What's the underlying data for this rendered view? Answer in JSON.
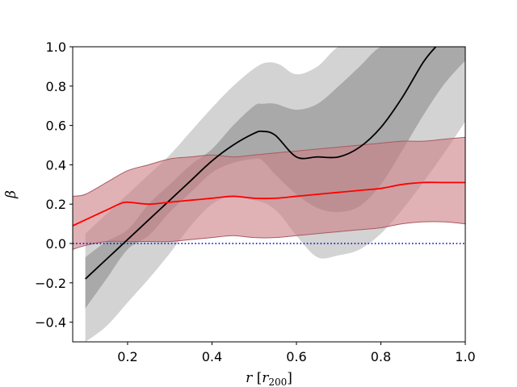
{
  "chart_data": {
    "type": "line",
    "title": "",
    "xlabel": "r [r200]",
    "ylabel": "β",
    "xlim": [
      0.07,
      1.0
    ],
    "ylim": [
      -0.5,
      1.0
    ],
    "xticks": [
      0.2,
      0.4,
      0.6,
      0.8,
      1.0
    ],
    "xtick_labels": [
      "0.2",
      "0.4",
      "0.6",
      "0.8",
      "1.0"
    ],
    "yticks": [
      -0.4,
      -0.2,
      0.0,
      0.2,
      0.4,
      0.6,
      0.8,
      1.0
    ],
    "ytick_labels": [
      "−0.4",
      "−0.2",
      "0.0",
      "0.2",
      "0.4",
      "0.6",
      "0.8",
      "1.0"
    ],
    "grid": false,
    "colors": {
      "black_line": "#000000",
      "outer_band": "#d3d3d3",
      "inner_band": "#a9a9a9",
      "red_line": "#ff0000",
      "red_band": "#cd7e84",
      "red_band_edge": "#a85a60",
      "reference_line": "#0000cd"
    },
    "series": [
      {
        "name": "black median",
        "style": "solid",
        "color": "#000000",
        "x": [
          0.1,
          0.15,
          0.2,
          0.25,
          0.3,
          0.35,
          0.4,
          0.45,
          0.5,
          0.52,
          0.55,
          0.6,
          0.65,
          0.7,
          0.75,
          0.8,
          0.85,
          0.9,
          0.93
        ],
        "y": [
          -0.18,
          -0.08,
          0.02,
          0.12,
          0.22,
          0.32,
          0.42,
          0.5,
          0.56,
          0.57,
          0.55,
          0.44,
          0.44,
          0.44,
          0.49,
          0.59,
          0.74,
          0.92,
          1.0
        ]
      },
      {
        "name": "black inner band",
        "type": "band",
        "color": "#a9a9a9",
        "x": [
          0.1,
          0.15,
          0.2,
          0.25,
          0.3,
          0.35,
          0.4,
          0.45,
          0.5,
          0.52,
          0.55,
          0.6,
          0.65,
          0.7,
          0.75,
          0.8,
          0.85,
          0.9,
          0.95,
          1.0
        ],
        "lower": [
          -0.33,
          -0.18,
          -0.03,
          0.04,
          0.16,
          0.26,
          0.36,
          0.41,
          0.43,
          0.42,
          0.35,
          0.25,
          0.18,
          0.16,
          0.19,
          0.3,
          0.47,
          0.65,
          0.81,
          0.93
        ],
        "upper": [
          -0.07,
          0.01,
          0.07,
          0.2,
          0.3,
          0.4,
          0.48,
          0.6,
          0.7,
          0.71,
          0.71,
          0.68,
          0.71,
          0.8,
          0.9,
          1.0,
          1.0,
          1.0,
          1.0,
          1.0
        ]
      },
      {
        "name": "black outer band",
        "type": "band",
        "color": "#d3d3d3",
        "x": [
          0.1,
          0.15,
          0.2,
          0.25,
          0.3,
          0.35,
          0.4,
          0.45,
          0.5,
          0.53,
          0.56,
          0.6,
          0.65,
          0.7,
          0.75,
          0.8,
          0.85,
          0.9,
          0.95,
          1.0
        ],
        "lower": [
          -0.5,
          -0.42,
          -0.3,
          -0.18,
          -0.05,
          0.09,
          0.2,
          0.24,
          0.22,
          0.2,
          0.15,
          0.04,
          -0.07,
          -0.06,
          -0.03,
          0.05,
          0.17,
          0.31,
          0.46,
          0.62
        ],
        "upper": [
          0.05,
          0.15,
          0.25,
          0.35,
          0.45,
          0.57,
          0.69,
          0.8,
          0.89,
          0.92,
          0.91,
          0.86,
          0.9,
          1.0,
          1.0,
          1.0,
          1.0,
          1.0,
          1.0,
          1.0
        ]
      },
      {
        "name": "red median",
        "style": "solid",
        "color": "#ff0000",
        "x": [
          0.07,
          0.1,
          0.15,
          0.18,
          0.2,
          0.25,
          0.3,
          0.35,
          0.4,
          0.45,
          0.5,
          0.55,
          0.6,
          0.65,
          0.7,
          0.75,
          0.8,
          0.85,
          0.9,
          0.95,
          1.0
        ],
        "y": [
          0.09,
          0.12,
          0.17,
          0.2,
          0.21,
          0.2,
          0.21,
          0.22,
          0.23,
          0.24,
          0.23,
          0.23,
          0.24,
          0.25,
          0.26,
          0.27,
          0.28,
          0.3,
          0.31,
          0.31,
          0.31
        ]
      },
      {
        "name": "red band",
        "type": "band",
        "color": "#cd7e84",
        "x": [
          0.07,
          0.1,
          0.15,
          0.2,
          0.25,
          0.3,
          0.35,
          0.4,
          0.45,
          0.5,
          0.55,
          0.6,
          0.65,
          0.7,
          0.75,
          0.8,
          0.85,
          0.9,
          0.95,
          1.0
        ],
        "lower": [
          -0.03,
          -0.01,
          0.01,
          0.01,
          0.01,
          0.01,
          0.02,
          0.03,
          0.04,
          0.03,
          0.03,
          0.04,
          0.05,
          0.06,
          0.07,
          0.08,
          0.1,
          0.11,
          0.11,
          0.1
        ],
        "upper": [
          0.24,
          0.25,
          0.31,
          0.37,
          0.4,
          0.43,
          0.44,
          0.45,
          0.44,
          0.45,
          0.46,
          0.47,
          0.48,
          0.49,
          0.5,
          0.51,
          0.52,
          0.52,
          0.53,
          0.54
        ]
      },
      {
        "name": "zero reference",
        "style": "dotted",
        "color": "#0000cd",
        "x": [
          0.07,
          1.0
        ],
        "y": [
          0.0,
          0.0
        ]
      }
    ]
  }
}
